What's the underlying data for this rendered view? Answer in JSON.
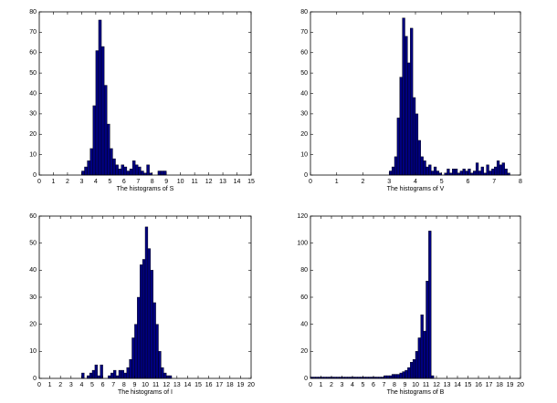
{
  "chart_data": [
    {
      "type": "histogram",
      "xlabel": "The histograms of S",
      "color": "#00007f",
      "edgecolor": "#000000",
      "grid": false,
      "bins": [
        3,
        3.2,
        3.4,
        3.6,
        3.8,
        4,
        4.2,
        4.4,
        4.6,
        4.8,
        5,
        5.2,
        5.4,
        5.6,
        5.8,
        6,
        6.2,
        6.4,
        6.6,
        6.8,
        7,
        7.2,
        7.4,
        7.6,
        7.8,
        8,
        8.2,
        8.4,
        8.6,
        8.8,
        9,
        9.2,
        9.4
      ],
      "values": [
        2,
        4,
        7,
        13,
        34,
        61,
        76,
        63,
        44,
        25,
        13,
        8,
        5,
        3,
        5,
        4,
        2,
        3,
        7,
        5,
        4,
        2,
        1,
        5,
        1,
        0,
        0,
        2,
        2,
        2,
        0,
        0
      ],
      "xlim": [
        0,
        15
      ],
      "xticks": [
        0,
        1,
        2,
        3,
        4,
        5,
        6,
        7,
        8,
        9,
        10,
        11,
        12,
        13,
        14,
        15
      ],
      "ylim": [
        0,
        80
      ],
      "yticks": [
        0,
        10,
        20,
        30,
        40,
        50,
        60,
        70,
        80
      ]
    },
    {
      "type": "histogram",
      "xlabel": "The histograms of V",
      "color": "#00007f",
      "edgecolor": "#000000",
      "grid": false,
      "bins": [
        3,
        3.1,
        3.2,
        3.3,
        3.4,
        3.5,
        3.6,
        3.7,
        3.8,
        3.9,
        4,
        4.1,
        4.2,
        4.3,
        4.4,
        4.5,
        4.6,
        4.7,
        4.8,
        4.9,
        5,
        5.1,
        5.2,
        5.3,
        5.4,
        5.5,
        5.6,
        5.7,
        5.8,
        5.9,
        6,
        6.1,
        6.2,
        6.3,
        6.4,
        6.5,
        6.6,
        6.7,
        6.8,
        6.9,
        7,
        7.1,
        7.2,
        7.3,
        7.4,
        7.5,
        7.6
      ],
      "values": [
        2,
        4,
        9,
        28,
        48,
        77,
        68,
        55,
        72,
        38,
        30,
        17,
        9,
        7,
        4,
        5,
        2,
        4,
        2,
        1,
        0,
        1,
        3,
        1,
        3,
        3,
        1,
        2,
        3,
        2,
        3,
        1,
        2,
        6,
        2,
        4,
        1,
        5,
        2,
        3,
        4,
        7,
        5,
        6,
        3,
        1
      ],
      "xlim": [
        0,
        8
      ],
      "xticks": [
        0,
        1,
        2,
        3,
        4,
        5,
        6,
        7,
        8
      ],
      "ylim": [
        0,
        80
      ],
      "yticks": [
        0,
        10,
        20,
        30,
        40,
        50,
        60,
        70,
        80
      ]
    },
    {
      "type": "histogram",
      "xlabel": "The histograms of I",
      "color": "#00007f",
      "edgecolor": "#000000",
      "grid": false,
      "bins": [
        4,
        4.25,
        4.5,
        4.75,
        5,
        5.25,
        5.5,
        5.75,
        6,
        6.25,
        6.5,
        6.75,
        7,
        7.25,
        7.5,
        7.75,
        8,
        8.25,
        8.5,
        8.75,
        9,
        9.25,
        9.5,
        9.75,
        10,
        10.25,
        10.5,
        10.75,
        11,
        11.25,
        11.5,
        11.75,
        12,
        12.25,
        12.5
      ],
      "values": [
        2,
        0,
        1,
        2,
        3,
        5,
        1,
        5,
        0,
        0,
        1,
        2,
        3,
        1,
        3,
        3,
        2,
        4,
        7,
        15,
        20,
        30,
        42,
        44,
        56,
        48,
        40,
        28,
        20,
        10,
        4,
        2,
        1,
        1
      ],
      "xlim": [
        0,
        20
      ],
      "xticks": [
        0,
        1,
        2,
        3,
        4,
        5,
        6,
        7,
        8,
        9,
        10,
        11,
        12,
        13,
        14,
        15,
        16,
        17,
        18,
        19,
        20
      ],
      "ylim": [
        0,
        60
      ],
      "yticks": [
        0,
        10,
        20,
        30,
        40,
        50,
        60
      ]
    },
    {
      "type": "histogram",
      "xlabel": "The histograms of B",
      "color": "#00007f",
      "edgecolor": "#000000",
      "grid": false,
      "bins": [
        0,
        0.25,
        0.5,
        0.75,
        1,
        1.25,
        1.5,
        1.75,
        2,
        2.25,
        2.5,
        2.75,
        3,
        3.25,
        3.5,
        3.75,
        4,
        4.25,
        4.5,
        4.75,
        5,
        5.25,
        5.5,
        5.75,
        6,
        6.25,
        6.5,
        6.75,
        7,
        7.25,
        7.5,
        7.75,
        8,
        8.25,
        8.5,
        8.75,
        9,
        9.25,
        9.5,
        9.75,
        10,
        10.25,
        10.5,
        10.75,
        11,
        11.25,
        11.5,
        11.75,
        12
      ],
      "values": [
        1,
        1,
        1,
        1,
        1,
        1,
        1,
        1,
        1,
        1,
        1,
        1,
        1,
        1,
        1,
        1,
        1,
        1,
        1,
        1,
        1,
        1,
        1,
        1,
        1,
        1,
        1,
        1,
        2,
        2,
        2,
        3,
        3,
        3,
        4,
        5,
        6,
        8,
        12,
        14,
        20,
        30,
        47,
        35,
        72,
        109,
        2,
        0
      ],
      "xlim": [
        0,
        20
      ],
      "xticks": [
        0,
        1,
        2,
        3,
        4,
        5,
        6,
        7,
        8,
        9,
        10,
        11,
        12,
        13,
        14,
        15,
        16,
        17,
        18,
        19,
        20
      ],
      "ylim": [
        0,
        120
      ],
      "yticks": [
        0,
        20,
        40,
        60,
        80,
        100,
        120
      ]
    }
  ]
}
